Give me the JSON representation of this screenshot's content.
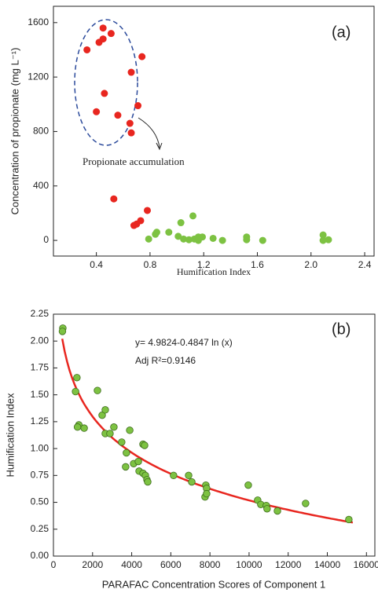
{
  "chart_data": [
    {
      "type": "scatter",
      "x_label": "Humification Index",
      "y_label": "Concentration of propionate (mg L⁻¹)",
      "panel_label": "(a)",
      "annotation": "Propionate accumulation",
      "xlim": [
        0.08,
        2.47
      ],
      "xticks": [
        0.4,
        0.8,
        1.2,
        1.6,
        {
          "value": 2,
          "label": "2.0"
        },
        2.4
      ],
      "ylim": [
        -115,
        1720
      ],
      "yticks": [
        0,
        400,
        800,
        1200,
        1600
      ],
      "series": [
        {
          "color": "#e8261f",
          "x": [
            0.33,
            0.42,
            0.45,
            0.45,
            0.51,
            0.74,
            0.66,
            0.46,
            0.71,
            0.4,
            0.56,
            0.65,
            0.66,
            0.53,
            0.78,
            0.73,
            0.7,
            0.68
          ],
          "values": [
            1400,
            1455,
            1480,
            1560,
            1520,
            1350,
            1235,
            1080,
            990,
            945,
            920,
            860,
            790,
            305,
            220,
            145,
            120,
            110
          ]
        },
        {
          "color": "#7dc242",
          "x": [
            0.79,
            0.84,
            0.85,
            0.94,
            1.03,
            1.12,
            1.01,
            1.05,
            1.09,
            1.13,
            1.16,
            1.19,
            1.16,
            1.27,
            1.34,
            1.52,
            1.52,
            1.64,
            2.09,
            2.09,
            2.13
          ],
          "values": [
            10,
            45,
            60,
            60,
            130,
            180,
            30,
            10,
            5,
            10,
            25,
            25,
            0,
            15,
            0,
            25,
            5,
            0,
            40,
            0,
            5
          ]
        }
      ]
    },
    {
      "type": "scatter",
      "x_label": "PARAFAC Concentration Scores of Component 1",
      "y_label": "Humification Index",
      "panel_label": "(b)",
      "equation": "y= 4.9824-0.4847 ln (x)",
      "r2_label": "Adj R²=0.9146",
      "xlim": [
        0,
        16430
      ],
      "xticks": [
        0,
        2000,
        4000,
        6000,
        8000,
        10000,
        12000,
        14000,
        16000
      ],
      "ylim": [
        0,
        2.25
      ],
      "yticks": [
        {
          "value": 0,
          "label": "0.00"
        },
        {
          "value": 0.25,
          "label": "0.25"
        },
        {
          "value": 0.5,
          "label": "0.50"
        },
        {
          "value": 0.75,
          "label": "0.75"
        },
        {
          "value": 1,
          "label": "1.00"
        },
        {
          "value": 1.25,
          "label": "1.25"
        },
        {
          "value": 1.5,
          "label": "1.50"
        },
        {
          "value": 1.75,
          "label": "1.75"
        },
        {
          "value": 2,
          "label": "2.00"
        },
        {
          "value": 2.25,
          "label": "2.25"
        }
      ],
      "series": [
        {
          "color": "#7dc242",
          "x": [
            480,
            460,
            1200,
            1130,
            1300,
            1230,
            1570,
            2250,
            2490,
            2650,
            2650,
            2890,
            3090,
            3900,
            3490,
            3730,
            3690,
            4100,
            4340,
            4380,
            4580,
            4580,
            4660,
            4700,
            4780,
            4820,
            6140,
            6910,
            7070,
            7790,
            7830,
            7750,
            7830,
            9960,
            10440,
            10600,
            10880,
            10920,
            11450,
            12890,
            15100
          ],
          "values": [
            2.12,
            2.09,
            1.66,
            1.53,
            1.22,
            1.2,
            1.19,
            1.54,
            1.31,
            1.36,
            1.14,
            1.14,
            1.2,
            1.17,
            1.06,
            0.96,
            0.83,
            0.86,
            0.88,
            0.79,
            0.77,
            1.04,
            1.03,
            0.75,
            0.71,
            0.69,
            0.75,
            0.75,
            0.69,
            0.66,
            0.63,
            0.55,
            0.58,
            0.66,
            0.52,
            0.48,
            0.47,
            0.44,
            0.42,
            0.49,
            0.34
          ]
        }
      ],
      "fit": {
        "intercept": 4.9824,
        "slope": -0.4847,
        "xlim": [
          450,
          15300
        ],
        "color": "#e8261f"
      }
    }
  ]
}
